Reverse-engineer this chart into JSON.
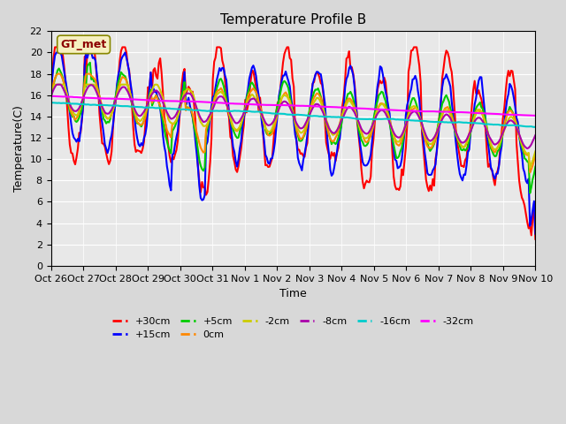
{
  "title": "Temperature Profile B",
  "xlabel": "Time",
  "ylabel": "Temperature(C)",
  "annotation": "GT_met",
  "ylim": [
    0,
    22
  ],
  "yticks": [
    0,
    2,
    4,
    6,
    8,
    10,
    12,
    14,
    16,
    18,
    20,
    22
  ],
  "xtick_labels": [
    "Oct 26",
    "Oct 27",
    "Oct 28",
    "Oct 29",
    "Oct 30",
    "Oct 31",
    "Nov 1",
    "Nov 2",
    "Nov 3",
    "Nov 4",
    "Nov 5",
    "Nov 6",
    "Nov 7",
    "Nov 8",
    "Nov 9",
    "Nov 10"
  ],
  "series": {
    "+30cm": {
      "color": "#ff0000",
      "lw": 1.5
    },
    "+15cm": {
      "color": "#0000ff",
      "lw": 1.5
    },
    "+5cm": {
      "color": "#00cc00",
      "lw": 1.5
    },
    "0cm": {
      "color": "#ff8800",
      "lw": 1.5
    },
    "-2cm": {
      "color": "#cccc00",
      "lw": 1.5
    },
    "-8cm": {
      "color": "#aa00aa",
      "lw": 1.5
    },
    "-16cm": {
      "color": "#00cccc",
      "lw": 1.5
    },
    "-32cm": {
      "color": "#ff00ff",
      "lw": 1.5
    }
  }
}
